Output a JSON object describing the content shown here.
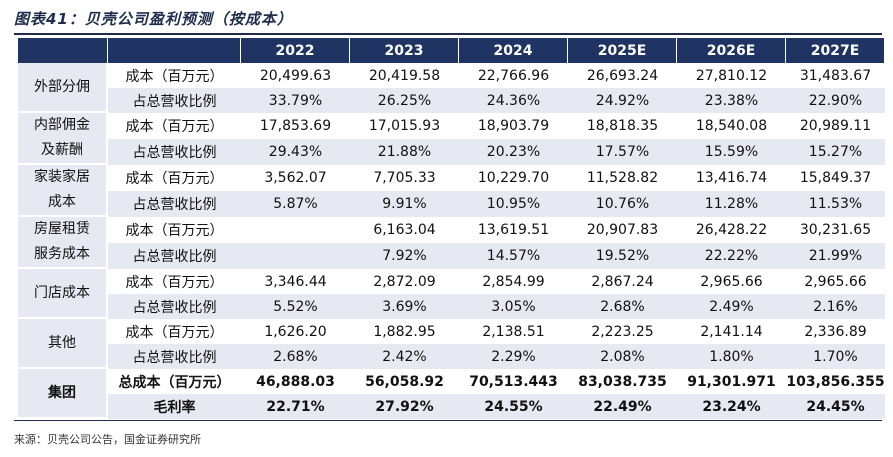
{
  "title": "图表41：贝壳公司盈利预测（按成本）",
  "header": [
    "2022",
    "2023",
    "2024",
    "2025E",
    "2026E",
    "2027E"
  ],
  "groups": [
    {
      "label": [
        "外部分佣"
      ],
      "rows": [
        {
          "label": "成本（百万元）",
          "values": [
            "20,499.63",
            "20,419.58",
            "22,766.96",
            "26,693.24",
            "27,810.12",
            "31,483.67"
          ]
        },
        {
          "label": "占总营收比例",
          "values": [
            "33.79%",
            "26.25%",
            "24.36%",
            "24.92%",
            "23.38%",
            "22.90%"
          ]
        }
      ]
    },
    {
      "label": [
        "内部佣金",
        "及薪酬"
      ],
      "rows": [
        {
          "label": "成本（百万元）",
          "values": [
            "17,853.69",
            "17,015.93",
            "18,903.79",
            "18,818.35",
            "18,540.08",
            "20,989.11"
          ]
        },
        {
          "label": "占总营收比例",
          "values": [
            "29.43%",
            "21.88%",
            "20.23%",
            "17.57%",
            "15.59%",
            "15.27%"
          ]
        }
      ]
    },
    {
      "label": [
        "家装家居",
        "成本"
      ],
      "rows": [
        {
          "label": "成本（百万元）",
          "values": [
            "3,562.07",
            "7,705.33",
            "10,229.70",
            "11,528.82",
            "13,416.74",
            "15,849.37"
          ]
        },
        {
          "label": "占总营收比例",
          "values": [
            "5.87%",
            "9.91%",
            "10.95%",
            "10.76%",
            "11.28%",
            "11.53%"
          ]
        }
      ]
    },
    {
      "label": [
        "房屋租赁",
        "服务成本"
      ],
      "rows": [
        {
          "label": "成本（百万元）",
          "values": [
            "",
            "6,163.04",
            "13,619.51",
            "20,907.83",
            "26,428.22",
            "30,231.65"
          ]
        },
        {
          "label": "占总营收比例",
          "values": [
            "",
            "7.92%",
            "14.57%",
            "19.52%",
            "22.22%",
            "21.99%"
          ]
        }
      ]
    },
    {
      "label": [
        "门店成本"
      ],
      "rows": [
        {
          "label": "成本（百万元）",
          "values": [
            "3,346.44",
            "2,872.09",
            "2,854.99",
            "2,867.24",
            "2,965.66",
            "2,965.66"
          ]
        },
        {
          "label": "占总营收比例",
          "values": [
            "5.52%",
            "3.69%",
            "3.05%",
            "2.68%",
            "2.49%",
            "2.16%"
          ]
        }
      ]
    },
    {
      "label": [
        "其他"
      ],
      "rows": [
        {
          "label": "成本（百万元）",
          "values": [
            "1,626.20",
            "1,882.95",
            "2,138.51",
            "2,223.25",
            "2,141.14",
            "2,336.89"
          ]
        },
        {
          "label": "占总营收比例",
          "values": [
            "2.68%",
            "2.42%",
            "2.29%",
            "2.08%",
            "1.80%",
            "1.70%"
          ]
        }
      ]
    },
    {
      "label": [
        "集团"
      ],
      "bold": true,
      "rows": [
        {
          "label": "总成本（百万元）",
          "values": [
            "46,888.03",
            "56,058.92",
            "70,513.443",
            "83,038.735",
            "91,301.971",
            "103,856.355"
          ]
        },
        {
          "label": "毛利率",
          "values": [
            "22.71%",
            "27.92%",
            "24.55%",
            "22.49%",
            "23.24%",
            "24.45%"
          ]
        }
      ]
    }
  ],
  "source": "来源：贝壳公司公告，国金证券研究所"
}
